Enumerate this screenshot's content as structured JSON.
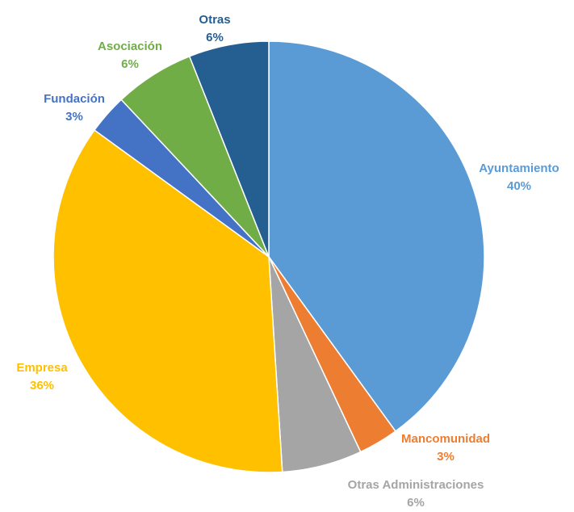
{
  "chart_data": {
    "type": "pie",
    "title": "",
    "slices": [
      {
        "name": "Ayuntamiento",
        "value": 40,
        "label": "40%",
        "color": "#5B9BD5"
      },
      {
        "name": "Mancomunidad",
        "value": 3,
        "label": "3%",
        "color": "#ED7D31"
      },
      {
        "name": "Otras Administraciones",
        "value": 6,
        "label": "6%",
        "color": "#A5A5A5"
      },
      {
        "name": "Empresa",
        "value": 36,
        "label": "36%",
        "color": "#FFC000"
      },
      {
        "name": "Fundación",
        "value": 3,
        "label": "3%",
        "color": "#4472C4"
      },
      {
        "name": "Asociación",
        "value": 6,
        "label": "6%",
        "color": "#70AD47"
      },
      {
        "name": "Otras",
        "value": 6,
        "label": "6%",
        "color": "#255E91"
      }
    ],
    "label_colors": {
      "Ayuntamiento": "#5B9BD5",
      "Mancomunidad": "#ED7D31",
      "Otras Administraciones": "#A5A5A5",
      "Empresa": "#FFC000",
      "Fundación": "#4472C4",
      "Asociación": "#70AD47",
      "Otras": "#255E91"
    },
    "legend": "none",
    "labels": "outside"
  }
}
